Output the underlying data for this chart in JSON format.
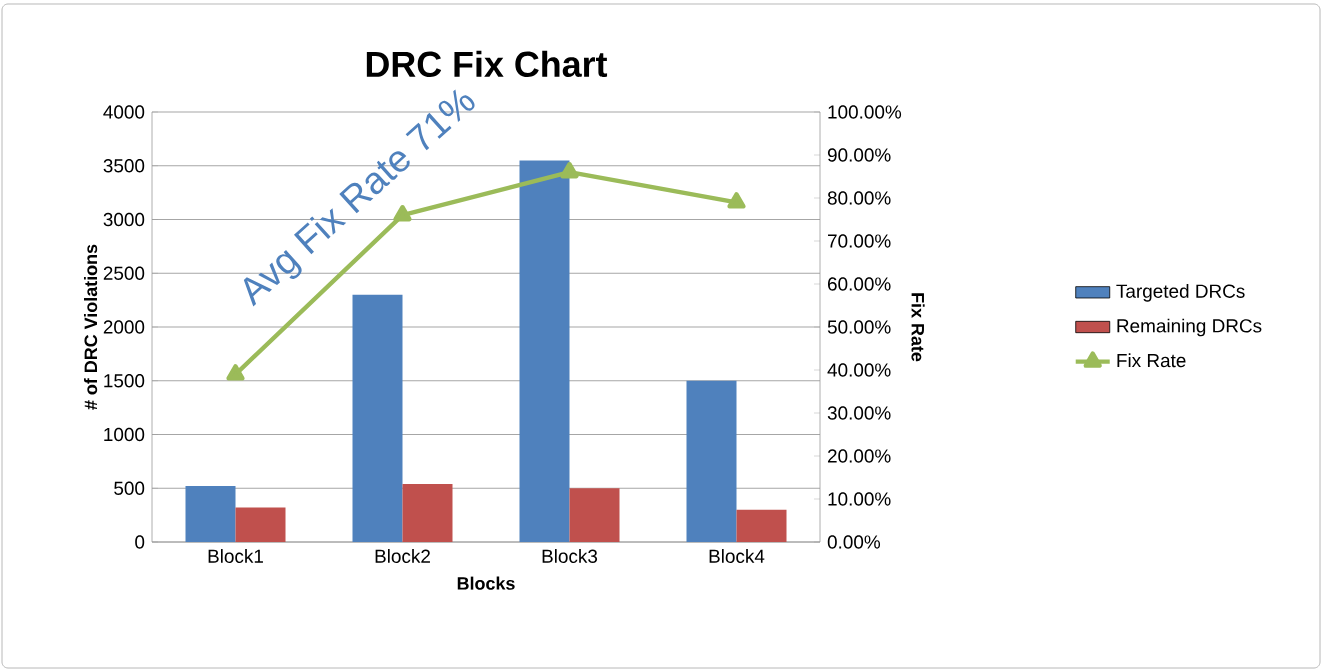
{
  "chart_data": {
    "type": "bar",
    "title": "DRC Fix Chart",
    "xlabel": "Blocks",
    "ylabel": "# of DRC Violations",
    "y2label": "Fix Rate",
    "categories": [
      "Block1",
      "Block2",
      "Block3",
      "Block4"
    ],
    "series": [
      {
        "name": "Targeted DRCs",
        "color": "#4f81bd",
        "values": [
          520,
          2300,
          3550,
          1500
        ]
      },
      {
        "name": "Remaining DRCs",
        "color": "#c0504d",
        "values": [
          320,
          540,
          500,
          300
        ]
      },
      {
        "name": "Fix Rate",
        "type": "line",
        "axis": "y2",
        "color": "#9bbb59",
        "marker": "triangle",
        "values": [
          39,
          76,
          86,
          79
        ]
      }
    ],
    "ylim": [
      0,
      4000
    ],
    "yticks": [
      0,
      500,
      1000,
      1500,
      2000,
      2500,
      3000,
      3500,
      4000
    ],
    "y2lim": [
      0,
      100
    ],
    "y2ticks": [
      {
        "value": 0,
        "label": "0.00%"
      },
      {
        "value": 10,
        "label": "10.00%"
      },
      {
        "value": 20,
        "label": "20.00%"
      },
      {
        "value": 30,
        "label": "30.00%"
      },
      {
        "value": 40,
        "label": "40.00%"
      },
      {
        "value": 50,
        "label": "50.00%"
      },
      {
        "value": 60,
        "label": "60.00%"
      },
      {
        "value": 70,
        "label": "70.00%"
      },
      {
        "value": 80,
        "label": "80.00%"
      },
      {
        "value": 90,
        "label": "90.00%"
      },
      {
        "value": 100,
        "label": "100.00%"
      }
    ],
    "grid": "y",
    "legend": "right",
    "annotations": [
      "Avg Fix Rate 71%"
    ]
  }
}
